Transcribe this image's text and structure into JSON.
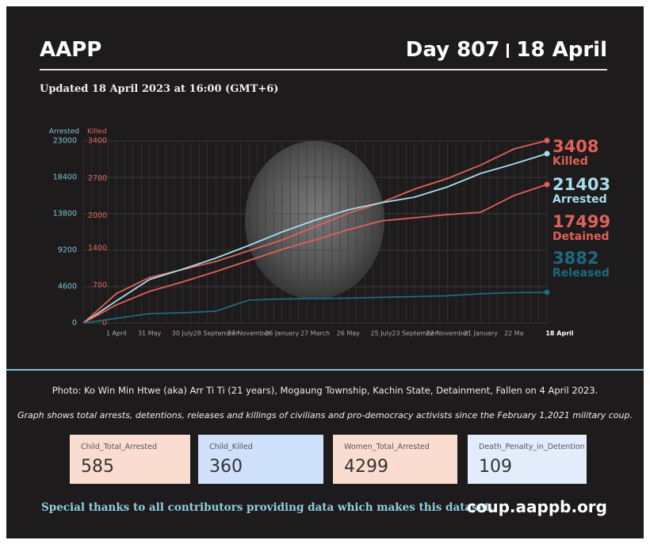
{
  "header": {
    "title": "AAPP",
    "day": "Day 807",
    "date": "18 April",
    "updated": "Updated 18 April 2023 at 16:00 (GMT+6)"
  },
  "chart_data": {
    "type": "line",
    "ylabel": "Arrested",
    "y2label": "Killed",
    "categories": [
      null,
      "1 April",
      "31 May",
      "30 July",
      "28 September",
      "27 November",
      "26 January",
      "27 March",
      "26 May",
      "25 July",
      "23 September",
      "22 November",
      "21 January",
      "22 Ma",
      "18 April"
    ],
    "ylim": [
      0,
      23000
    ],
    "yticks": [
      0,
      4600,
      9200,
      13800,
      18400,
      23000
    ],
    "y2lim": [
      0,
      3400
    ],
    "y2ticks": [
      0,
      700,
      1400,
      2000,
      2700,
      3400
    ],
    "grid": true,
    "series": [
      {
        "name": "Killed",
        "color": "#e0605a",
        "axis": "y2",
        "values": [
          0,
          550,
          850,
          1000,
          1150,
          1350,
          1550,
          1800,
          2050,
          2250,
          2500,
          2700,
          2950,
          3250,
          3408
        ]
      },
      {
        "name": "Arrested",
        "color": "#a8dcec",
        "values": [
          0,
          2800,
          5500,
          6800,
          8200,
          9800,
          11500,
          13000,
          14300,
          15200,
          15900,
          17200,
          18900,
          20100,
          21403
        ]
      },
      {
        "name": "Detained",
        "color": "#e0605a",
        "values": [
          0,
          2300,
          4000,
          5200,
          6500,
          7900,
          9300,
          10500,
          11800,
          12900,
          13300,
          13700,
          14000,
          16100,
          17499
        ]
      },
      {
        "name": "Released",
        "color": "#1e6a80",
        "values": [
          0,
          600,
          1200,
          1300,
          1500,
          2900,
          3050,
          3100,
          3150,
          3250,
          3350,
          3450,
          3700,
          3850,
          3882
        ]
      }
    ]
  },
  "notes": {
    "photo": "Photo: Ko Win Min Htwe (aka) Arr Ti Ti (21 years), Mogaung Township, Kachin State, Detainment, Fallen on 4 April 2023.",
    "graph": "Graph shows total arrests, detentions, releases and killings of civilians and pro-democracy activists since the February 1,2021 military coup."
  },
  "cards": [
    {
      "label": "Child_Total_Arrested",
      "value": 585
    },
    {
      "label": "Child_Killed",
      "value": 360
    },
    {
      "label": "Women_Total_Arrested",
      "value": 4299
    },
    {
      "label": "Death_Penalty_in_Detention",
      "value": 109
    }
  ],
  "footer": {
    "thanks": "Special thanks to all contributors providing data which makes this dataset.",
    "url": "coup.aappb.org"
  }
}
